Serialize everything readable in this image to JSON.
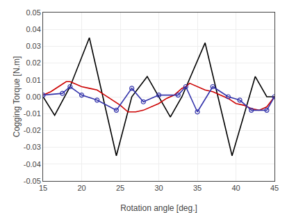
{
  "chart_data": {
    "type": "line",
    "xlabel": "Rotation angle [deg.]",
    "ylabel": "Cogging Torque [N.m]",
    "xlim": [
      15,
      45
    ],
    "ylim": [
      -0.05,
      0.05
    ],
    "xticks": [
      15,
      20,
      25,
      30,
      35,
      40,
      45
    ],
    "yticks": [
      -0.05,
      -0.04,
      -0.03,
      -0.02,
      -0.01,
      {
        "value": 0,
        "label": "0.00"
      },
      0.01,
      0.02,
      0.03,
      0.04,
      0.05
    ],
    "grid": true,
    "series": [
      {
        "color": "#000000",
        "x": [
          15,
          16.5,
          18.5,
          21.0,
          24.5,
          26.5,
          28.5,
          31.5,
          33.0,
          36.0,
          39.5,
          42.5,
          44.0,
          45.0
        ],
        "values": [
          0.0,
          -0.011,
          0.006,
          0.035,
          -0.035,
          0.0,
          0.012,
          -0.012,
          0.0,
          0.032,
          -0.035,
          0.012,
          0.0,
          0.0
        ]
      },
      {
        "color": "#cc0000",
        "x": [
          15,
          16,
          17,
          18,
          18.5,
          19,
          20,
          21,
          22,
          23,
          24,
          25,
          26,
          27,
          28,
          29,
          30,
          31,
          32,
          33,
          33.5,
          34,
          35,
          36,
          37,
          38,
          39,
          40,
          41,
          42,
          43,
          44,
          45
        ],
        "values": [
          0.001,
          0.003,
          0.006,
          0.009,
          0.009,
          0.008,
          0.006,
          0.005,
          0.004,
          0.001,
          -0.002,
          -0.005,
          -0.009,
          -0.009,
          -0.008,
          -0.006,
          -0.004,
          -0.001,
          0.001,
          0.005,
          0.006,
          0.008,
          0.006,
          0.004,
          0.003,
          0.001,
          -0.001,
          -0.004,
          -0.005,
          -0.007,
          -0.008,
          -0.006,
          0.0
        ]
      },
      {
        "color": "#3333aa",
        "marker": "circle-open",
        "x": [
          15,
          17.5,
          18.5,
          20.0,
          22.0,
          24.5,
          26.5,
          28.0,
          30.0,
          32.5,
          33.5,
          35.0,
          37.0,
          39.0,
          40.5,
          42.0,
          44.0,
          45.0
        ],
        "values": [
          0.001,
          0.002,
          0.006,
          0.001,
          -0.002,
          -0.008,
          0.005,
          -0.003,
          0.001,
          0.001,
          0.006,
          -0.009,
          0.006,
          0.0,
          -0.002,
          -0.008,
          -0.008,
          0.0
        ]
      }
    ]
  }
}
